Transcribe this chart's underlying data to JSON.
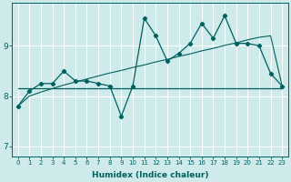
{
  "xlabel": "Humidex (Indice chaleur)",
  "ylabel": "",
  "background_color": "#ceeaea",
  "line_color": "#006060",
  "grid_color": "#b0d8d8",
  "xlim": [
    -0.5,
    23.5
  ],
  "ylim": [
    6.8,
    9.85
  ],
  "yticks": [
    7,
    8,
    9
  ],
  "xticks": [
    0,
    1,
    2,
    3,
    4,
    5,
    6,
    7,
    8,
    9,
    10,
    11,
    12,
    13,
    14,
    15,
    16,
    17,
    18,
    19,
    20,
    21,
    22,
    23
  ],
  "series_wiggly": {
    "x": [
      0,
      1,
      2,
      3,
      4,
      5,
      6,
      7,
      8,
      9,
      10,
      11,
      12,
      13,
      14,
      15,
      16,
      17,
      18,
      19,
      20,
      21,
      22,
      23
    ],
    "y": [
      7.8,
      8.1,
      8.25,
      8.25,
      8.5,
      8.3,
      8.3,
      8.25,
      8.2,
      7.6,
      8.2,
      9.55,
      9.2,
      8.7,
      8.85,
      9.05,
      9.45,
      9.15,
      9.6,
      9.05,
      9.05,
      9.0,
      8.45,
      8.2
    ]
  },
  "series_flat": {
    "x": [
      0,
      23
    ],
    "y": [
      8.15,
      8.15
    ]
  },
  "series_rising": {
    "x": [
      0,
      1,
      2,
      3,
      4,
      5,
      6,
      7,
      8,
      9,
      10,
      11,
      12,
      13,
      14,
      15,
      16,
      17,
      18,
      19,
      20,
      21,
      22,
      23
    ],
    "y": [
      7.8,
      8.0,
      8.08,
      8.15,
      8.22,
      8.28,
      8.34,
      8.4,
      8.46,
      8.51,
      8.57,
      8.62,
      8.68,
      8.73,
      8.79,
      8.84,
      8.9,
      8.95,
      9.01,
      9.06,
      9.12,
      9.17,
      9.2,
      8.2
    ]
  }
}
